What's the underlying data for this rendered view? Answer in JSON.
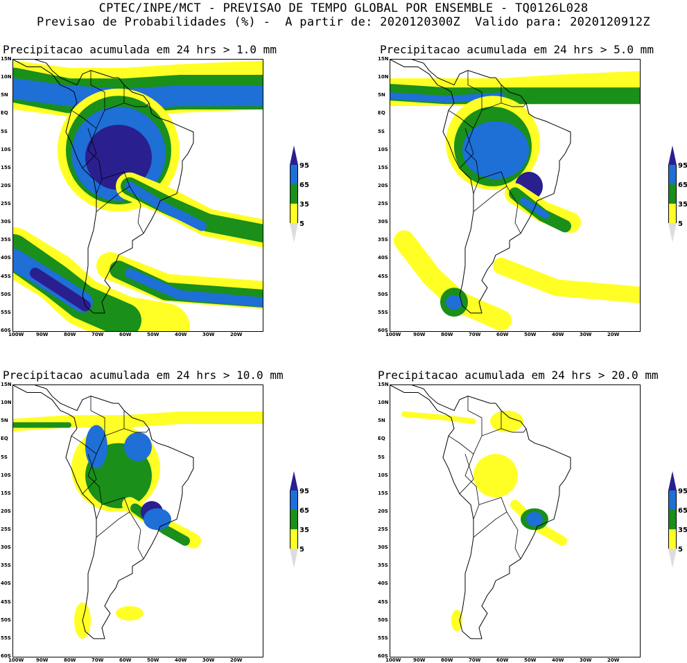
{
  "header": {
    "line1": "CPTEC/INPE/MCT - PREVISAO DE TEMPO GLOBAL POR ENSEMBLE - TQ0126L028",
    "line2": "Previsao de Probabilidades (%) -  A partir de: 2020120300Z  Valido para: 2020120912Z"
  },
  "panels": [
    {
      "title": "Precipitacao acumulada em 24 hrs > 1.0 mm"
    },
    {
      "title": "Precipitacao acumulada em 24 hrs > 5.0 mm"
    },
    {
      "title": "Precipitacao acumulada em 24 hrs > 10.0 mm"
    },
    {
      "title": "Precipitacao acumulada em 24 hrs > 20.0 mm"
    }
  ],
  "lat_labels": [
    "15N",
    "10N",
    "5N",
    "EQ",
    "5S",
    "10S",
    "15S",
    "20S",
    "25S",
    "30S",
    "35S",
    "40S",
    "45S",
    "50S",
    "55S",
    "60S"
  ],
  "lon_labels": [
    "100W",
    "90W",
    "80W",
    "70W",
    "60W",
    "50W",
    "40W",
    "30W",
    "20W"
  ],
  "colorbar": {
    "labels": [
      "95",
      "65",
      "35",
      "5"
    ],
    "colors": {
      "top": "#2a1f8f",
      "c95": "#1e6fd6",
      "c65": "#1a8f1a",
      "c35": "#ffff26",
      "c5": "#ffffff"
    }
  }
}
